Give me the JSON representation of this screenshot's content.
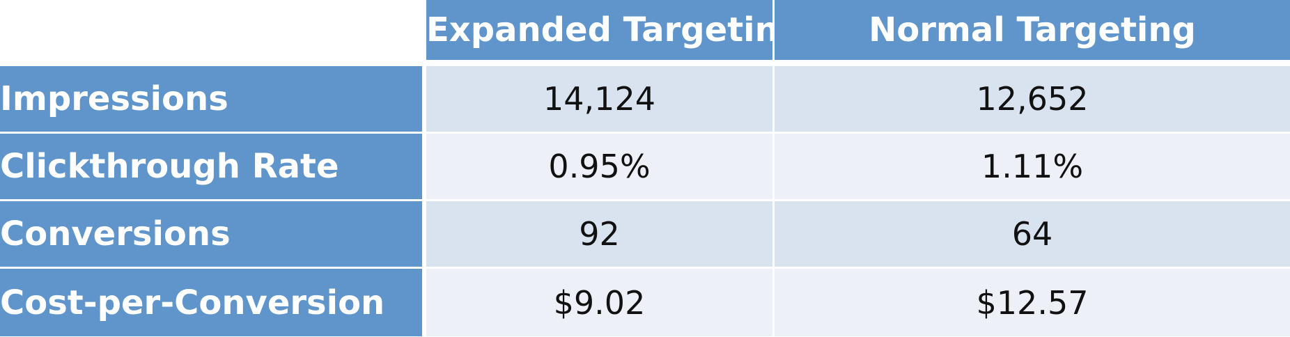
{
  "table": {
    "columns": [
      "Expanded Targeting",
      "Normal Targeting"
    ],
    "rows": [
      {
        "label": "Impressions",
        "values": [
          "14,124",
          "12,652"
        ]
      },
      {
        "label": "Clickthrough Rate",
        "values": [
          "0.95%",
          "1.11%"
        ]
      },
      {
        "label": "Conversions",
        "values": [
          "92",
          "64"
        ]
      },
      {
        "label": "Cost-per-Conversion",
        "values": [
          "$9.02",
          "$12.57"
        ]
      }
    ]
  },
  "colors": {
    "header_blue": "#5f95cb",
    "band_dark": "#d9e2ef",
    "band_light": "#edf1f7",
    "header_text": "#ffffff",
    "cell_text": "#111111"
  }
}
